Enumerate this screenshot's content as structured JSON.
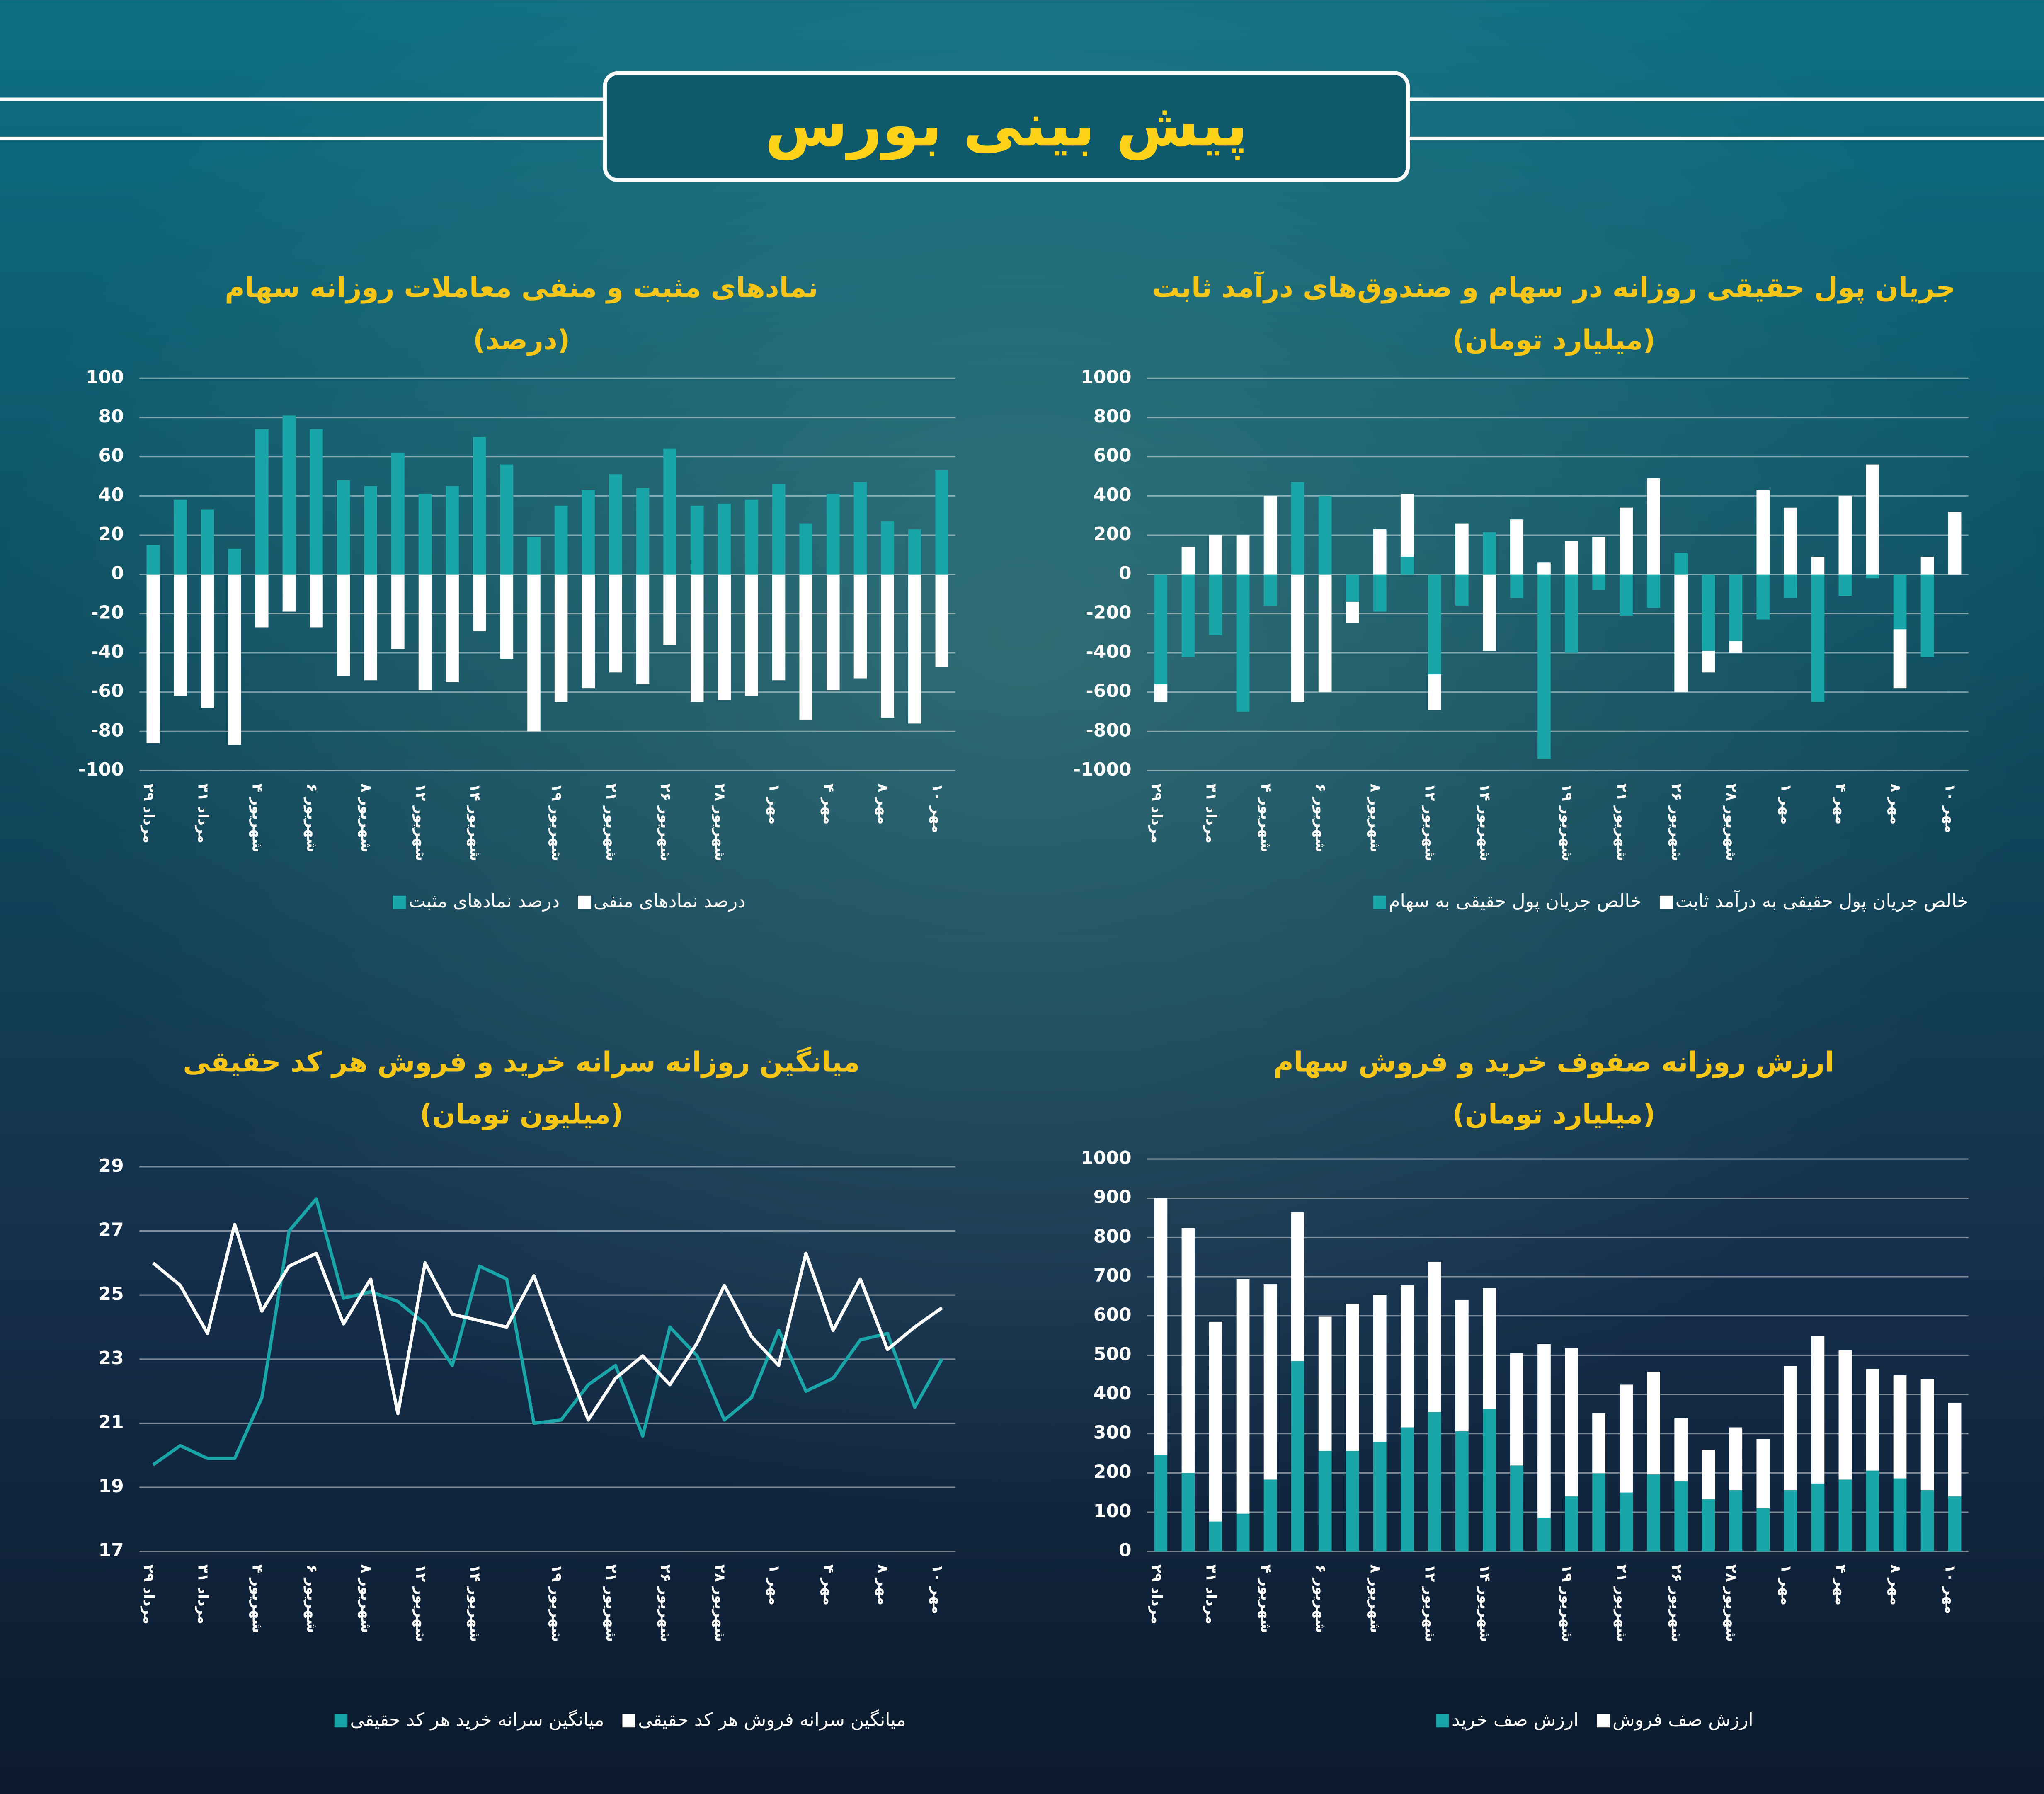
{
  "header": {
    "title": "پیش بینی بورس"
  },
  "chart_data": [
    {
      "type": "bar",
      "stacked": true,
      "grid": true,
      "title": "جریان پول حقیقی روزانه در سهام و صندوق‌های درآمد ثابت",
      "subtitle": "(میلیارد تومان)",
      "categories": [
        "۲۹ مرداد",
        null,
        "۳۱ مرداد",
        null,
        "۴ شهریور",
        null,
        "۶ شهریور",
        null,
        "۸ شهریور",
        null,
        "۱۲ شهریور",
        null,
        "۱۴ شهریور",
        null,
        null,
        "۱۹ شهریور",
        null,
        "۲۱ شهریور",
        null,
        "۲۶ شهریور",
        null,
        "۲۸ شهریور",
        null,
        "۱ مهر",
        null,
        "۴ مهر",
        null,
        "۸ مهر",
        null,
        "۱۰ مهر"
      ],
      "series": [
        {
          "name": "خالص جریان پول حقیقی به سهام",
          "color": "#1aa5a8",
          "values": [
            -560,
            -420,
            -310,
            -700,
            -160,
            470,
            400,
            -140,
            -190,
            90,
            -510,
            -160,
            215,
            -120,
            -940,
            -400,
            -80,
            -210,
            -170,
            110,
            -390,
            -340,
            -230,
            -120,
            -650,
            -110,
            -20,
            -280,
            -420,
            0
          ]
        },
        {
          "name": "خالص جریان پول حقیقی به درآمد ثابت",
          "color": "#ffffff",
          "values": [
            -90,
            140,
            200,
            200,
            400,
            -650,
            -600,
            -110,
            230,
            320,
            -180,
            260,
            -390,
            280,
            60,
            170,
            190,
            340,
            490,
            -600,
            -110,
            -60,
            430,
            340,
            90,
            400,
            560,
            -300,
            90,
            320
          ]
        }
      ],
      "ylim": [
        -1000,
        1000
      ],
      "yticks": [
        1000,
        800,
        600,
        400,
        200,
        0,
        -200,
        -400,
        -600,
        -800,
        -1000
      ]
    },
    {
      "type": "bar",
      "stacked": true,
      "grid": true,
      "title": "نمادهای مثبت و منفی معاملات روزانه سهام",
      "subtitle": "(درصد)",
      "categories": [
        "۲۹ مرداد",
        null,
        "۳۱ مرداد",
        null,
        "۴ شهریور",
        null,
        "۶ شهریور",
        null,
        "۸ شهریور",
        null,
        "۱۲ شهریور",
        null,
        "۱۴ شهریور",
        null,
        null,
        "۱۹ شهریور",
        null,
        "۲۱ شهریور",
        null,
        "۲۶ شهریور",
        null,
        "۲۸ شهریور",
        null,
        "۱ مهر",
        null,
        "۴ مهر",
        null,
        "۸ مهر",
        null,
        "۱۰ مهر"
      ],
      "series": [
        {
          "name": "درصد نمادهای مثبت",
          "color": "#1aa5a8",
          "values": [
            15,
            38,
            33,
            13,
            74,
            81,
            74,
            48,
            45,
            62,
            41,
            45,
            70,
            56,
            19,
            35,
            43,
            51,
            44,
            64,
            35,
            36,
            38,
            46,
            26,
            41,
            47,
            27,
            23,
            53
          ]
        },
        {
          "name": "درصد نمادهای منفی",
          "color": "#ffffff",
          "values": [
            -86,
            -62,
            -68,
            -87,
            -27,
            -19,
            -27,
            -52,
            -54,
            -38,
            -59,
            -55,
            -29,
            -43,
            -80,
            -65,
            -58,
            -50,
            -56,
            -36,
            -65,
            -64,
            -62,
            -54,
            -74,
            -59,
            -53,
            -73,
            -76,
            -47
          ]
        }
      ],
      "ylim": [
        -100,
        100
      ],
      "yticks": [
        100,
        80,
        60,
        40,
        20,
        0,
        -20,
        -40,
        -60,
        -80,
        -100
      ]
    },
    {
      "type": "line",
      "grid": true,
      "title": "میانگین روزانه سرانه خرید و فروش هر کد حقیقی",
      "subtitle": "(میلیون تومان)",
      "categories": [
        "۲۹ مرداد",
        null,
        "۳۱ مرداد",
        null,
        "۴ شهریور",
        null,
        "۶ شهریور",
        null,
        "۸ شهریور",
        null,
        "۱۲ شهریور",
        null,
        "۱۴ شهریور",
        null,
        null,
        "۱۹ شهریور",
        null,
        "۲۱ شهریور",
        null,
        "۲۶ شهریور",
        null,
        "۲۸ شهریور",
        null,
        "۱ مهر",
        null,
        "۴ مهر",
        null,
        "۸ مهر",
        null,
        "۱۰ مهر"
      ],
      "series": [
        {
          "name": "میانگین سرانه خرید هر کد حقیقی",
          "color": "#1aa5a8",
          "values": [
            19.7,
            20.3,
            19.9,
            19.9,
            21.8,
            27,
            28,
            24.9,
            25.1,
            24.8,
            24.1,
            22.8,
            25.9,
            25.5,
            21,
            21.1,
            22.2,
            22.8,
            20.6,
            24,
            23.1,
            21.1,
            21.8,
            23.9,
            22,
            22.4,
            23.6,
            23.8,
            21.5,
            23
          ]
        },
        {
          "name": "میانگین سرانه فروش هر کد حقیقی",
          "color": "#ffffff",
          "values": [
            26,
            25.3,
            23.8,
            27.2,
            24.5,
            25.9,
            26.3,
            24.1,
            25.5,
            21.3,
            26,
            24.4,
            24.2,
            24,
            25.6,
            23.3,
            21.1,
            22.4,
            23.1,
            22.2,
            23.5,
            25.3,
            23.7,
            22.8,
            26.3,
            23.9,
            25.5,
            23.3,
            24,
            24.6
          ]
        }
      ],
      "ylim": [
        17,
        29
      ],
      "yticks": [
        29,
        27,
        25,
        23,
        21,
        19,
        17
      ]
    },
    {
      "type": "bar",
      "stacked": true,
      "grid": true,
      "title": "ارزش روزانه صفوف خرید و فروش سهام",
      "subtitle": "(میلیارد تومان)",
      "categories": [
        "۲۹ مرداد",
        null,
        "۳۱ مرداد",
        null,
        "۴ شهریور",
        null,
        "۶ شهریور",
        null,
        "۸ شهریور",
        null,
        "۱۲ شهریور",
        null,
        "۱۴ شهریور",
        null,
        null,
        "۱۹ شهریور",
        null,
        "۲۱ شهریور",
        null,
        "۲۶ شهریور",
        null,
        "۲۸ شهریور",
        null,
        "۱ مهر",
        null,
        "۴ مهر",
        null,
        "۸ مهر",
        null,
        "۱۰ مهر"
      ],
      "series": [
        {
          "name": "ارزش صف خرید",
          "color": "#1aa5a8",
          "values": [
            246,
            200,
            76,
            96,
            183,
            485,
            256,
            256,
            279,
            316,
            355,
            306,
            362,
            219,
            86,
            140,
            199,
            150,
            196,
            179,
            133,
            156,
            110,
            156,
            173,
            183,
            206,
            186,
            156,
            140
          ]
        },
        {
          "name": "ارزش صف فروش",
          "color": "#ffffff",
          "values": [
            654,
            624,
            509,
            598,
            498,
            379,
            342,
            375,
            375,
            362,
            383,
            335,
            309,
            286,
            442,
            378,
            153,
            275,
            262,
            160,
            126,
            160,
            176,
            316,
            375,
            329,
            259,
            263,
            283,
            239
          ]
        }
      ],
      "ylim": [
        0,
        1000
      ],
      "yticks": [
        1000,
        900,
        800,
        700,
        600,
        500,
        400,
        300,
        200,
        100,
        0
      ]
    }
  ]
}
